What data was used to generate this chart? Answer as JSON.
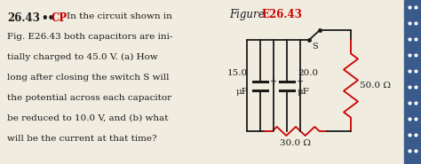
{
  "background_color": "#f0ece0",
  "right_strip_color": "#3a5a8c",
  "problem_number": "26.43",
  "dots": "••",
  "cp_label": "CP",
  "problem_text_lines": [
    "In the circuit shown in",
    "Fig. E26.43 both capacitors are ini-",
    "tially charged to 45.0 V. (a) How",
    "long after closing the switch S will",
    "the potential across each capacitor",
    "be reduced to 10.0 V, and (b) what",
    "will be the current at that time?"
  ],
  "figure_label": "Figure",
  "figure_number": "E26.43",
  "cap1_label": "15.0",
  "cap1_unit": "μF",
  "cap2_label": "20.0",
  "cap2_unit": "μF",
  "r1_label": "50.0 Ω",
  "r2_label": "30.0 Ω",
  "switch_label": "S",
  "text_color": "#1a1a1a",
  "cp_color": "#cc0000",
  "figure_number_color": "#cc0000",
  "resistor_color": "#cc0000",
  "wire_color": "#1a1a1a",
  "capacitor_color": "#1a1a1a"
}
